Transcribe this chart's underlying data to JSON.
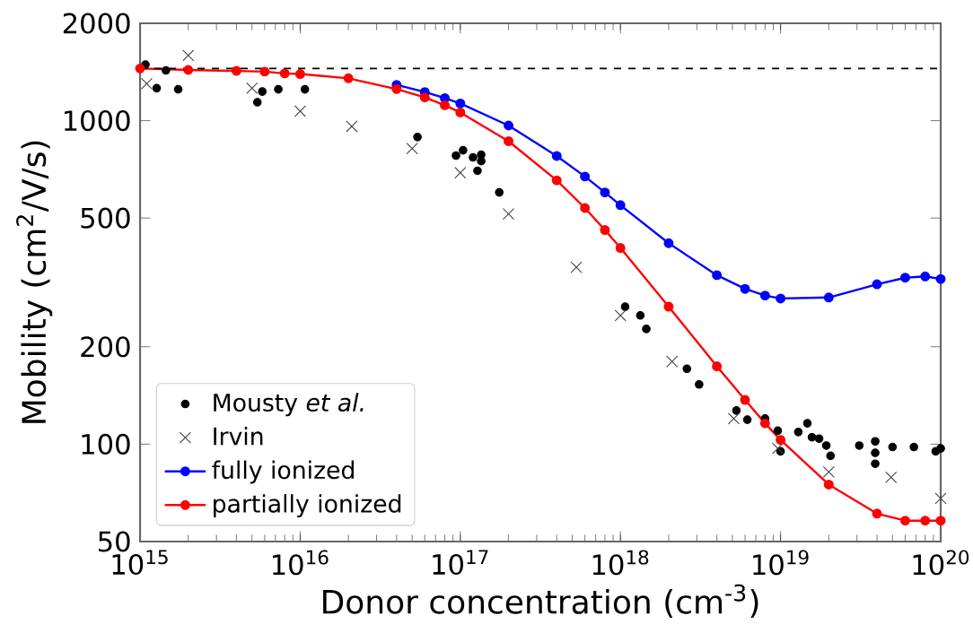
{
  "chart_data": {
    "type": "scatter",
    "xlabel": "Donor concentration (cm$^{-3}$)",
    "ylabel": "Mobility (cm$^{2}$/V/s)",
    "log": "xy",
    "grid": false,
    "legend": "bottom left",
    "xlim": [
      1000000000000000.0,
      1e+20
    ],
    "ylim": [
      50,
      2000
    ],
    "xticks": [
      {
        "value": 1000000000000000.0,
        "label": "10$^{15}$"
      },
      {
        "value": 1e+16,
        "label": "10$^{16}$"
      },
      {
        "value": 1e+17,
        "label": "10$^{17}$"
      },
      {
        "value": 1e+18,
        "label": "10$^{18}$"
      },
      {
        "value": 1e+19,
        "label": "10$^{19}$"
      },
      {
        "value": 1e+20,
        "label": "10$^{20}$"
      }
    ],
    "yticks": [
      50,
      100,
      200,
      500,
      1000,
      2000
    ],
    "ref_lines": [
      {
        "axis": "y",
        "value": 1450,
        "color": "#000000",
        "line_style": "dashed"
      }
    ],
    "series": [
      {
        "name": "Mousty *et al.*",
        "marker": "circle",
        "color": "#000000",
        "x": [
          1080000000000000.0,
          1270000000000000.0,
          1450000000000000.0,
          1730000000000000.0,
          5400000000000000.0,
          5800000000000000.0,
          7300000000000000.0,
          1.07e+16,
          5.4e+16,
          9.4e+16,
          1.04e+17,
          1.2e+17,
          1.28e+17,
          1.35e+17,
          1.35e+17,
          1.75e+17,
          1.07e+18,
          1.33e+18,
          1.45e+18,
          2.6e+18,
          3.1e+18,
          5.3e+18,
          6.2e+18,
          8e+18,
          9.6e+18,
          1e+19,
          1.29e+19,
          1.47e+19,
          1.57e+19,
          1.74e+19,
          1.93e+19,
          2.05e+19,
          3.1e+19,
          3.9e+19,
          3.9e+19,
          3.9e+19,
          5e+19,
          6.8e+19,
          9.3e+19,
          1e+20
        ],
        "values": [
          1490,
          1260,
          1430,
          1250,
          1140,
          1230,
          1250,
          1250,
          890,
          780,
          810,
          770,
          700,
          750,
          785,
          600,
          266,
          250,
          227,
          171,
          153,
          127,
          119,
          120,
          110,
          95,
          109,
          116,
          105,
          104,
          99,
          92,
          99,
          102,
          94,
          87,
          98,
          98,
          95,
          97
        ]
      },
      {
        "name": "Irvin",
        "marker": "cross",
        "color": "#404040",
        "x": [
          1100000000000000.0,
          2000000000000000.0,
          5000000000000000.0,
          1e+16,
          2.1e+16,
          5e+16,
          1e+17,
          2e+17,
          5.3e+17,
          1e+18,
          2.1e+18,
          5.1e+18,
          9.6e+18,
          2e+19,
          4.9e+19,
          1e+20
        ],
        "values": [
          1300,
          1590,
          1260,
          1070,
          960,
          820,
          690,
          515,
          352,
          250,
          180,
          120,
          97,
          82,
          79,
          68
        ]
      },
      {
        "name": "fully ionized",
        "type": "line",
        "marker": "circle",
        "color": "#0000ff",
        "x": [
          4e+16,
          6e+16,
          8e+16,
          1e+17,
          2e+17,
          4e+17,
          6e+17,
          8e+17,
          1e+18,
          2e+18,
          4e+18,
          6e+18,
          8e+18,
          1e+19,
          2e+19,
          4e+19,
          6e+19,
          8e+19,
          1e+20
        ],
        "values": [
          1290,
          1226,
          1174,
          1130,
          966,
          778,
          672,
          600,
          548,
          418,
          333,
          302,
          288,
          282,
          284,
          312,
          327,
          330,
          324
        ]
      },
      {
        "name": "partially ionized",
        "type": "line",
        "marker": "circle",
        "color": "#ff0000",
        "x": [
          1000000000000000.0,
          2000000000000000.0,
          4000000000000000.0,
          6000000000000000.0,
          8000000000000000.0,
          1e+16,
          2e+16,
          4e+16,
          6e+16,
          8e+16,
          1e+17,
          2e+17,
          4e+17,
          6e+17,
          8e+17,
          1e+18,
          2e+18,
          4e+18,
          6e+18,
          8e+18,
          1e+19,
          2e+19,
          4e+19,
          6e+19,
          8e+19,
          1e+20
        ],
        "values": [
          1450,
          1435,
          1425,
          1418,
          1400,
          1394,
          1352,
          1252,
          1180,
          1116,
          1060,
          864,
          654,
          537,
          459,
          404,
          266,
          174,
          137,
          116,
          103,
          75,
          61,
          58,
          58,
          58
        ]
      }
    ]
  }
}
